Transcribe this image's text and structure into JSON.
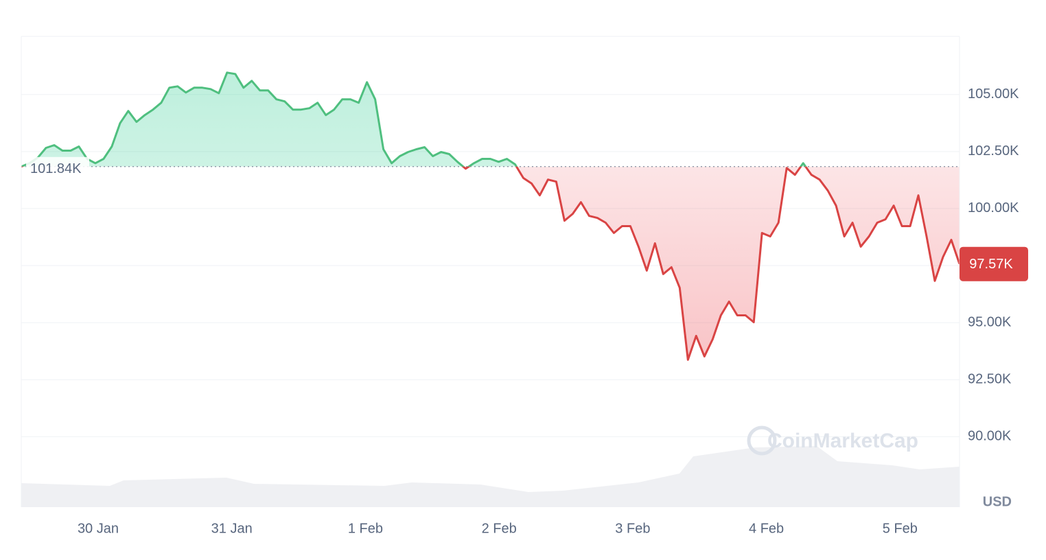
{
  "chart_data": {
    "type": "line",
    "baseline": 101840,
    "baseline_label": "101.84K",
    "last_label": "97.57K",
    "y_unit": "USD",
    "watermark": "CoinMarketCap",
    "ylim": [
      86910,
      107550
    ],
    "yticks": [
      {
        "value": 90000,
        "label": "90.00K"
      },
      {
        "value": 92500,
        "label": "92.50K"
      },
      {
        "value": 95000,
        "label": "95.00K"
      },
      {
        "value": 97500,
        "label": "97.50K"
      },
      {
        "value": 100000,
        "label": "100.00K"
      },
      {
        "value": 102500,
        "label": "102.50K"
      },
      {
        "value": 105000,
        "label": "105.00K"
      }
    ],
    "xlim": [
      -0.575,
      6.445
    ],
    "xticks": [
      {
        "value": 0,
        "label": "30 Jan"
      },
      {
        "value": 1,
        "label": "31 Jan"
      },
      {
        "value": 2,
        "label": "1 Feb"
      },
      {
        "value": 3,
        "label": "2 Feb"
      },
      {
        "value": 4,
        "label": "3 Feb"
      },
      {
        "value": 5,
        "label": "4 Feb"
      },
      {
        "value": 6,
        "label": "5 Feb"
      }
    ],
    "grid": true,
    "up_color": "#4fbf7f",
    "down_color": "#d94444",
    "values": [
      101840,
      101990,
      102230,
      102660,
      102780,
      102540,
      102540,
      102720,
      102180,
      101990,
      102180,
      102720,
      103740,
      104280,
      103800,
      104100,
      104340,
      104640,
      105300,
      105360,
      105090,
      105300,
      105300,
      105240,
      105060,
      105960,
      105900,
      105300,
      105600,
      105180,
      105180,
      104790,
      104700,
      104340,
      104340,
      104400,
      104640,
      104100,
      104340,
      104790,
      104790,
      104640,
      105540,
      104790,
      102600,
      101990,
      102300,
      102480,
      102600,
      102690,
      102300,
      102480,
      102390,
      102050,
      101750,
      101990,
      102180,
      102180,
      102050,
      102180,
      101940,
      101340,
      101100,
      100580,
      101270,
      101180,
      99470,
      99770,
      100280,
      99680,
      99590,
      99380,
      98930,
      99230,
      99230,
      98330,
      97280,
      98480,
      97130,
      97430,
      96530,
      93370,
      94420,
      93520,
      94270,
      95320,
      95920,
      95320,
      95320,
      95020,
      98930,
      98780,
      99380,
      101780,
      101480,
      101990,
      101480,
      101270,
      100790,
      100130,
      98780,
      99380,
      98330,
      98780,
      99380,
      99530,
      100130,
      99230,
      99230,
      100580,
      98780,
      96830,
      97880,
      98630,
      97570
    ]
  }
}
